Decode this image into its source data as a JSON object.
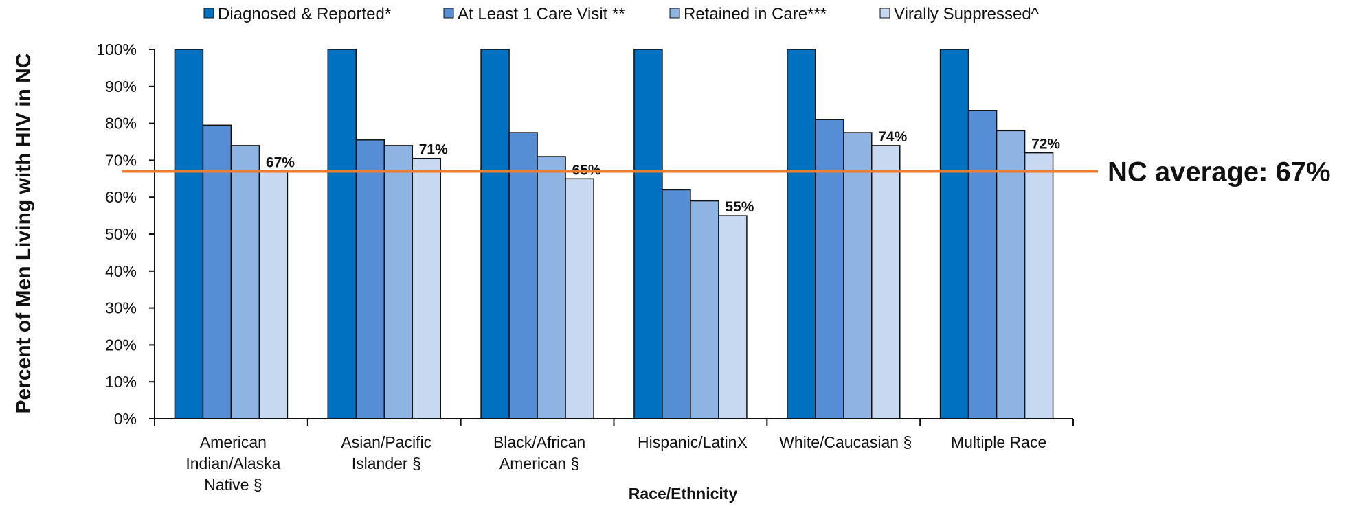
{
  "chart_data": {
    "type": "bar",
    "ylabel": "Percent of Men Living with HIV in NC",
    "xlabel": "Race/Ethnicity",
    "ylim": [
      0,
      100
    ],
    "yticks": [
      "0%",
      "10%",
      "20%",
      "30%",
      "40%",
      "50%",
      "60%",
      "70%",
      "80%",
      "90%",
      "100%"
    ],
    "legend_position": "top",
    "categories": [
      [
        "American",
        "Indian/Alaska",
        "Native §"
      ],
      [
        "Asian/Pacific",
        "Islander §"
      ],
      [
        "Black/African",
        "American §"
      ],
      [
        "Hispanic/LatinX"
      ],
      [
        "White/Caucasian §"
      ],
      [
        "Multiple Race"
      ]
    ],
    "series": [
      {
        "name": "Diagnosed & Reported*",
        "color": "#0070c0",
        "values": [
          100,
          100,
          100,
          100,
          100,
          100
        ]
      },
      {
        "name": "At Least 1 Care Visit **",
        "color": "#558ed5",
        "values": [
          79.5,
          75.5,
          77.5,
          62,
          81,
          83.5
        ]
      },
      {
        "name": "Retained in Care***",
        "color": "#8eb4e3",
        "values": [
          74,
          74,
          71,
          59,
          77.5,
          78
        ]
      },
      {
        "name": "Virally Suppressed^",
        "color": "#c6d9f1",
        "values": [
          67,
          70.5,
          65,
          55,
          74,
          72
        ]
      }
    ],
    "data_labels": [
      "67%",
      "71%",
      "65%",
      "55%",
      "74%",
      "72%"
    ],
    "reference_line": {
      "value": 67,
      "label": "NC average: 67%",
      "color": "#ed7d31"
    }
  }
}
